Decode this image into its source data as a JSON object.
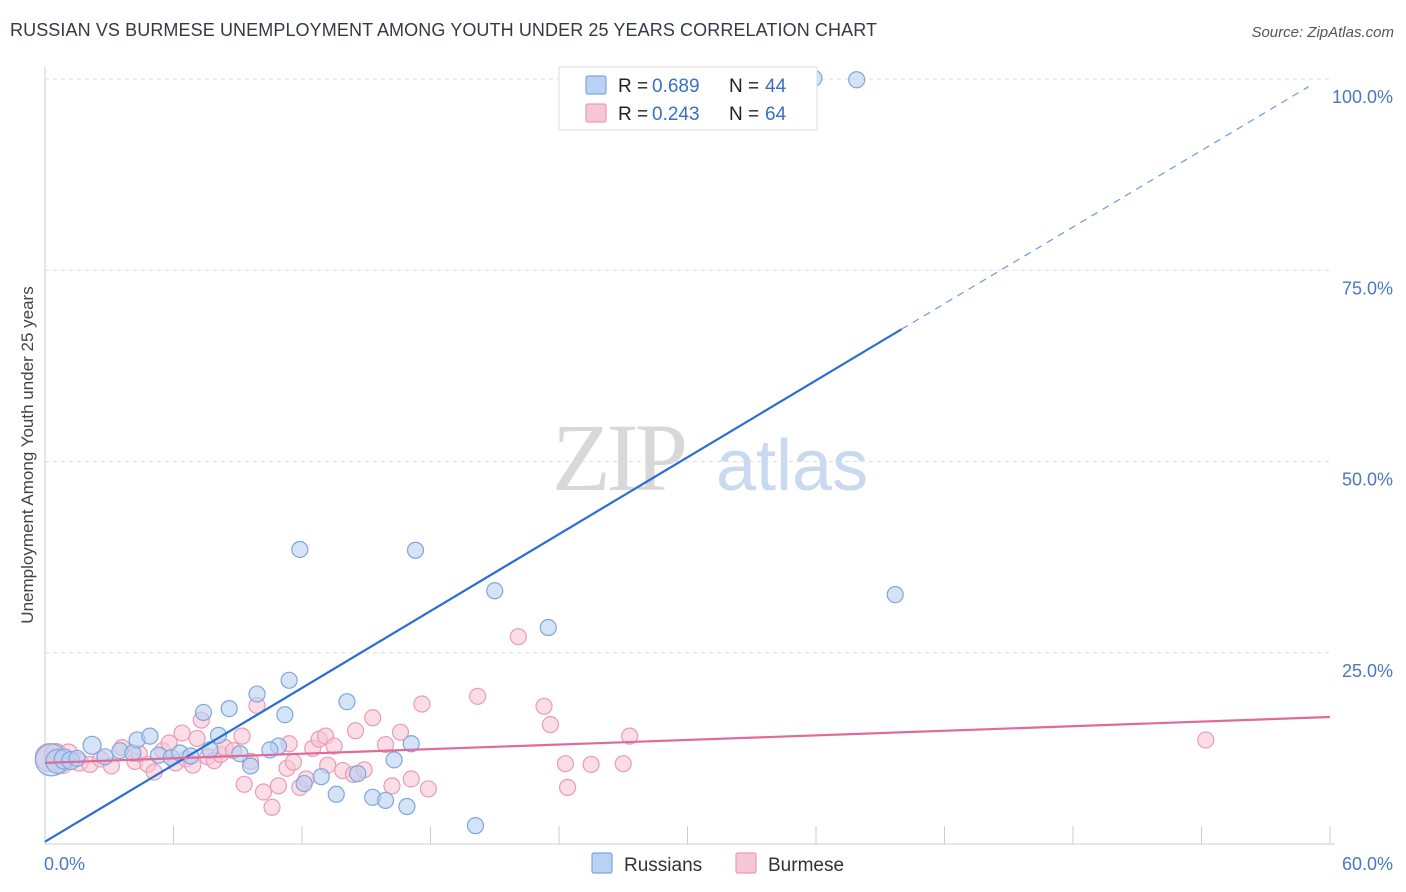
{
  "chart_data": {
    "type": "scatter",
    "title": "RUSSIAN VS BURMESE UNEMPLOYMENT AMONG YOUTH UNDER 25 YEARS CORRELATION CHART",
    "source": "Source: ZipAtlas.com",
    "ylabel": "Unemployment Among Youth under 25 years",
    "xlabel": "",
    "xlim": [
      0,
      60
    ],
    "ylim": [
      0,
      100
    ],
    "x_tick_labels": {
      "min": "0.0%",
      "max": "60.0%"
    },
    "y_ticks": [
      {
        "value": 25,
        "label": "25.0%"
      },
      {
        "value": 50,
        "label": "50.0%"
      },
      {
        "value": 75,
        "label": "75.0%"
      },
      {
        "value": 100,
        "label": "100.0%"
      }
    ],
    "watermark": {
      "zip": "ZIP",
      "atlas": "atlas"
    },
    "legend_top": [
      {
        "series": "Russians",
        "r_label": "R =",
        "r_value": "0.689",
        "n_label": "N =",
        "n_value": "44"
      },
      {
        "series": "Burmese",
        "r_label": "R =",
        "r_value": "0.243",
        "n_label": "N =",
        "n_value": "64"
      }
    ],
    "legend_bottom": [
      "Russians",
      "Burmese"
    ],
    "colors": {
      "russians_fill": "#b9d1f2",
      "russians_stroke": "#7fa6de",
      "russians_line": "#2a6fd1",
      "burmese_fill": "#f7c6d5",
      "burmese_stroke": "#eb9bb5",
      "burmese_line": "#e06a98",
      "value_text": "#3a6fc4",
      "label_text": "#222222",
      "grid": "#dddddd"
    },
    "series": [
      {
        "name": "Russians",
        "trend": {
          "x0": 0,
          "y0": 0.3,
          "x1": 40,
          "y1": 67.3,
          "dash_to_x": 59,
          "dash_to_y": 99
        },
        "points": [
          [
            0.3,
            11,
            16
          ],
          [
            0.6,
            10.8,
            12
          ],
          [
            0.9,
            11.1,
            10
          ],
          [
            1.2,
            10.9,
            9
          ],
          [
            1.5,
            11.2,
            8
          ],
          [
            2.2,
            12.9,
            9
          ],
          [
            2.8,
            11.4,
            8
          ],
          [
            3.5,
            12.2,
            8
          ],
          [
            4.1,
            11.9,
            8
          ],
          [
            4.3,
            13.6,
            8
          ],
          [
            4.9,
            14.1,
            8
          ],
          [
            5.3,
            11.6,
            8
          ],
          [
            5.9,
            11.3,
            8
          ],
          [
            6.3,
            11.9,
            8
          ],
          [
            6.8,
            11.5,
            8
          ],
          [
            7.4,
            17.2,
            8
          ],
          [
            7.7,
            12.3,
            8
          ],
          [
            8.1,
            14.2,
            8
          ],
          [
            8.6,
            17.7,
            8
          ],
          [
            9.1,
            11.8,
            8
          ],
          [
            9.6,
            10.2,
            8
          ],
          [
            9.9,
            19.6,
            8
          ],
          [
            10.9,
            12.8,
            8
          ],
          [
            11.2,
            16.9,
            8
          ],
          [
            11.4,
            21.4,
            8
          ],
          [
            11.9,
            38.5,
            8
          ],
          [
            12.1,
            7.9,
            8
          ],
          [
            12.9,
            8.8,
            8
          ],
          [
            13.6,
            6.5,
            8
          ],
          [
            14.1,
            18.6,
            8
          ],
          [
            14.6,
            9.2,
            8
          ],
          [
            15.3,
            6.1,
            8
          ],
          [
            15.9,
            5.7,
            8
          ],
          [
            16.3,
            11,
            8
          ],
          [
            17.1,
            13.1,
            8
          ],
          [
            16.9,
            4.9,
            8
          ],
          [
            17.3,
            38.4,
            8
          ],
          [
            20.1,
            2.4,
            8
          ],
          [
            21,
            33.1,
            8
          ],
          [
            23.5,
            28.3,
            8
          ],
          [
            35.9,
            100.1,
            8
          ],
          [
            37.9,
            99.9,
            8
          ],
          [
            39.7,
            32.6,
            8
          ],
          [
            10.5,
            12.3,
            8
          ]
        ]
      },
      {
        "name": "Burmese",
        "trend": {
          "x0": 0,
          "y0": 10.6,
          "x1": 60,
          "y1": 16.6
        },
        "points": [
          [
            0.2,
            11.3,
            14
          ],
          [
            0.5,
            11.7,
            11
          ],
          [
            0.8,
            10.5,
            10
          ],
          [
            1.1,
            11.9,
            9
          ],
          [
            1.6,
            10.7,
            9
          ],
          [
            2.1,
            10.4,
            8
          ],
          [
            2.6,
            11.1,
            8
          ],
          [
            3.1,
            10.2,
            8
          ],
          [
            3.6,
            12.6,
            8
          ],
          [
            4.2,
            10.8,
            8
          ],
          [
            4.4,
            11.8,
            8
          ],
          [
            4.8,
            10.4,
            8
          ],
          [
            5.1,
            9.4,
            8
          ],
          [
            5.5,
            12.2,
            8
          ],
          [
            5.8,
            13.2,
            8
          ],
          [
            6.1,
            10.6,
            8
          ],
          [
            6.6,
            11.1,
            8
          ],
          [
            6.9,
            10.3,
            8
          ],
          [
            7.1,
            13.8,
            8
          ],
          [
            7.3,
            16.2,
            8
          ],
          [
            7.6,
            11.4,
            8
          ],
          [
            7.9,
            10.9,
            8
          ],
          [
            8.2,
            11.7,
            8
          ],
          [
            8.4,
            12.6,
            8
          ],
          [
            8.8,
            12.2,
            8
          ],
          [
            9.2,
            14.1,
            8
          ],
          [
            9.3,
            7.8,
            8
          ],
          [
            9.6,
            10.8,
            8
          ],
          [
            9.9,
            18.1,
            8
          ],
          [
            10.2,
            6.8,
            8
          ],
          [
            10.6,
            4.8,
            8
          ],
          [
            10.9,
            7.6,
            8
          ],
          [
            11.3,
            9.9,
            8
          ],
          [
            11.6,
            10.7,
            8
          ],
          [
            11.9,
            7.4,
            8
          ],
          [
            12.2,
            8.5,
            8
          ],
          [
            12.5,
            12.5,
            8
          ],
          [
            12.8,
            13.7,
            8
          ],
          [
            13.1,
            14.1,
            8
          ],
          [
            13.5,
            12.8,
            8
          ],
          [
            13.9,
            9.6,
            8
          ],
          [
            14.4,
            9.1,
            8
          ],
          [
            14.9,
            9.7,
            8
          ],
          [
            15.3,
            16.5,
            8
          ],
          [
            15.9,
            13,
            8
          ],
          [
            16.2,
            7.6,
            8
          ],
          [
            16.6,
            14.6,
            8
          ],
          [
            17.1,
            8.5,
            8
          ],
          [
            17.6,
            18.3,
            8
          ],
          [
            17.9,
            7.2,
            8
          ],
          [
            14.5,
            14.8,
            8
          ],
          [
            11.4,
            13.1,
            8
          ],
          [
            13.2,
            10.3,
            8
          ],
          [
            6.4,
            14.5,
            8
          ],
          [
            20.2,
            19.3,
            8
          ],
          [
            23.3,
            18,
            8
          ],
          [
            23.6,
            15.6,
            8
          ],
          [
            22.1,
            27.1,
            8
          ],
          [
            24.3,
            10.5,
            8
          ],
          [
            24.4,
            7.4,
            8
          ],
          [
            25.5,
            10.4,
            8
          ],
          [
            27,
            10.5,
            8
          ],
          [
            27.3,
            14.1,
            8
          ],
          [
            54.2,
            13.6,
            8
          ]
        ]
      }
    ]
  }
}
